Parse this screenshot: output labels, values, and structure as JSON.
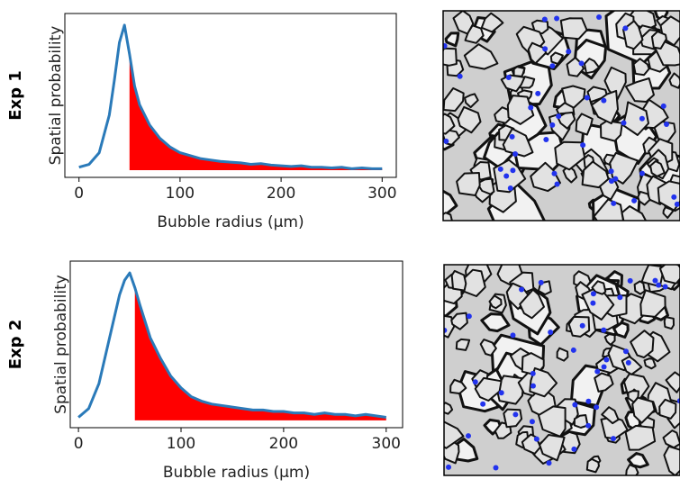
{
  "chart_data": [
    {
      "type": "line",
      "row_label": "Exp 1",
      "xlabel": "Bubble radius (µm)",
      "ylabel": "Spatial probability",
      "x": [
        0,
        10,
        20,
        30,
        35,
        40,
        45,
        50,
        55,
        60,
        70,
        80,
        90,
        100,
        110,
        120,
        130,
        140,
        150,
        160,
        170,
        180,
        190,
        200,
        210,
        220,
        230,
        240,
        250,
        260,
        270,
        280,
        290,
        300
      ],
      "series": [
        {
          "color": "#2a7ab9",
          "fill": "#ff0000",
          "fill_from": 50,
          "values": [
            0.02,
            0.04,
            0.12,
            0.38,
            0.62,
            0.88,
            1.0,
            0.8,
            0.58,
            0.45,
            0.31,
            0.22,
            0.16,
            0.12,
            0.1,
            0.08,
            0.07,
            0.06,
            0.055,
            0.05,
            0.04,
            0.045,
            0.035,
            0.03,
            0.025,
            0.03,
            0.02,
            0.02,
            0.015,
            0.02,
            0.01,
            0.015,
            0.01,
            0.01
          ]
        }
      ],
      "xlim": [
        -14,
        314
      ],
      "ylim": [
        -0.05,
        1.08
      ],
      "xticks": [
        0,
        100,
        200,
        300
      ]
    },
    {
      "type": "line",
      "row_label": "Exp 2",
      "xlabel": "Bubble radius (µm)",
      "ylabel": "Spatial probability",
      "x": [
        0,
        10,
        20,
        30,
        40,
        45,
        50,
        55,
        60,
        70,
        80,
        90,
        100,
        110,
        120,
        130,
        140,
        150,
        160,
        170,
        180,
        190,
        200,
        210,
        220,
        230,
        240,
        250,
        260,
        270,
        280,
        290,
        300
      ],
      "series": [
        {
          "color": "#2a7ab9",
          "fill": "#ff0000",
          "fill_from": 55,
          "values": [
            0.02,
            0.08,
            0.25,
            0.55,
            0.85,
            0.95,
            1.0,
            0.9,
            0.78,
            0.56,
            0.42,
            0.3,
            0.22,
            0.16,
            0.13,
            0.11,
            0.1,
            0.09,
            0.08,
            0.07,
            0.07,
            0.06,
            0.06,
            0.05,
            0.05,
            0.04,
            0.05,
            0.04,
            0.04,
            0.03,
            0.04,
            0.03,
            0.02
          ]
        }
      ],
      "xlim": [
        -8,
        316
      ],
      "ylim": [
        -0.05,
        1.08
      ],
      "xticks": [
        0,
        100,
        200,
        300
      ]
    }
  ]
}
